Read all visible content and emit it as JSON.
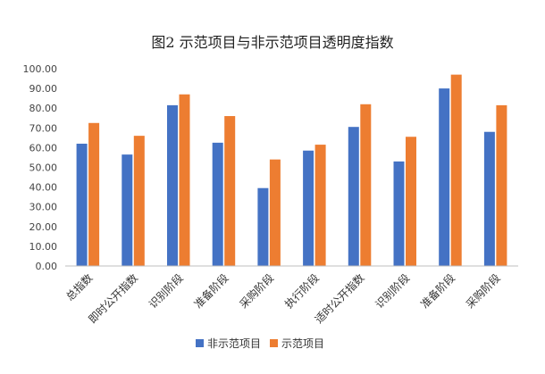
{
  "chart_data": {
    "type": "bar",
    "title": "图2  示范项目与非示范项目透明度指数",
    "xlabel": "",
    "ylabel": "",
    "categories": [
      "总指数",
      "即时公开指数",
      "识别阶段",
      "准备阶段",
      "采购阶段",
      "执行阶段",
      "适时公开指数",
      "识别阶段",
      "准备阶段",
      "采购阶段"
    ],
    "series": [
      {
        "name": "非示范项目",
        "color": "#4472C4",
        "values": [
          62.0,
          56.5,
          81.5,
          62.5,
          39.5,
          58.5,
          70.5,
          53.0,
          90.0,
          68.0
        ]
      },
      {
        "name": "示范项目",
        "color": "#ED7D31",
        "values": [
          72.5,
          66.0,
          87.0,
          76.0,
          54.0,
          61.5,
          82.0,
          65.5,
          97.0,
          81.5
        ]
      }
    ],
    "ylim": [
      0,
      100
    ],
    "yticks": [
      "0.00",
      "10.00",
      "20.00",
      "30.00",
      "40.00",
      "50.00",
      "60.00",
      "70.00",
      "80.00",
      "90.00",
      "100.00"
    ],
    "grid": false,
    "legend_position": "bottom-center"
  }
}
